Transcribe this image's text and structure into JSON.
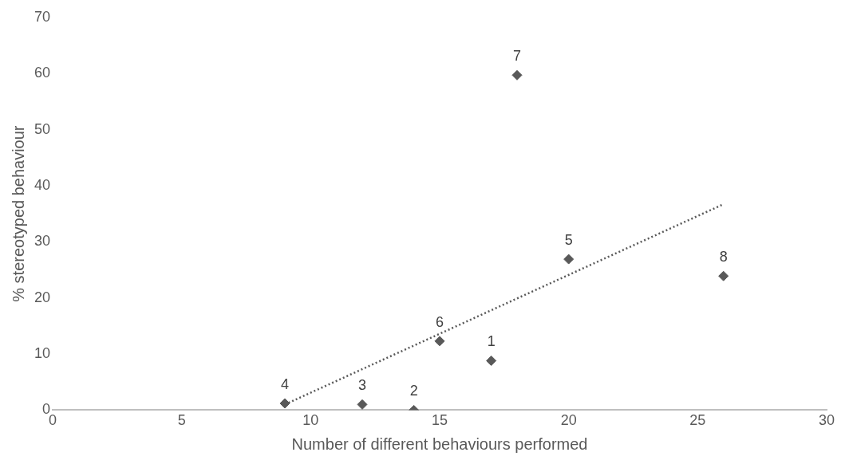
{
  "chart_data": {
    "type": "scatter",
    "xlabel": "Number of different behaviours performed",
    "ylabel": "% stereotyped behaviour",
    "xlim": [
      0,
      30
    ],
    "xticks": [
      0,
      5,
      10,
      15,
      20,
      25,
      30
    ],
    "ylim": [
      0,
      70
    ],
    "yticks": [
      0,
      10,
      20,
      30,
      40,
      50,
      60,
      70
    ],
    "grid": false,
    "legend": false,
    "series": [
      {
        "color": "#595959",
        "marker": "diamond",
        "x": [
          17,
          14,
          12,
          9,
          20,
          15,
          18,
          26
        ],
        "values": [
          8.8,
          0,
          1,
          1.2,
          26.9,
          12.3,
          59.7,
          23.9
        ]
      },
      {
        "type": "line",
        "color": "#595959",
        "line_style": "dotted",
        "marker": "none",
        "x": [
          9,
          26
        ],
        "values": [
          1,
          36.7
        ]
      }
    ],
    "annotations": [
      {
        "text": "1",
        "x": 17,
        "y": 8.8
      },
      {
        "text": "2",
        "x": 14,
        "y": 0
      },
      {
        "text": "3",
        "x": 12,
        "y": 1
      },
      {
        "text": "4",
        "x": 9,
        "y": 1.2
      },
      {
        "text": "5",
        "x": 20,
        "y": 26.9
      },
      {
        "text": "6",
        "x": 15,
        "y": 12.3
      },
      {
        "text": "7",
        "x": 18,
        "y": 59.7
      },
      {
        "text": "8",
        "x": 26,
        "y": 23.9
      }
    ]
  }
}
